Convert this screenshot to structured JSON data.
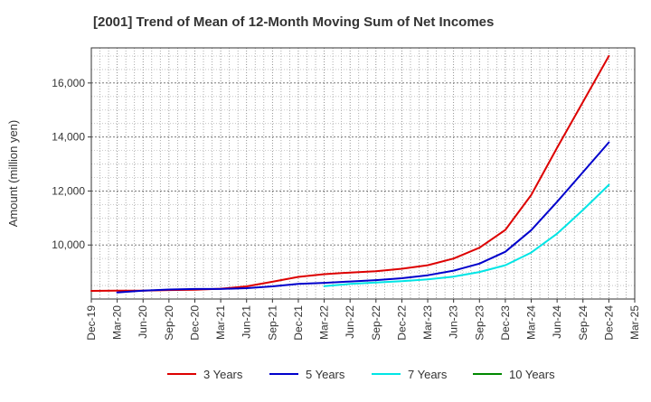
{
  "chart_data": {
    "type": "line",
    "title": "[2001]  Trend of Mean of 12-Month Moving Sum of Net Incomes",
    "ylabel": "Amount (million yen)",
    "xlabel": "",
    "ylim": [
      8000,
      17300
    ],
    "x_ticks": [
      "Dec-19",
      "Mar-20",
      "Jun-20",
      "Sep-20",
      "Dec-20",
      "Mar-21",
      "Jun-21",
      "Sep-21",
      "Dec-21",
      "Mar-22",
      "Jun-22",
      "Sep-22",
      "Dec-22",
      "Mar-23",
      "Jun-23",
      "Sep-23",
      "Dec-23",
      "Mar-24",
      "Jun-24",
      "Sep-24",
      "Dec-24",
      "Mar-25"
    ],
    "y_ticks": [
      10000,
      12000,
      14000,
      16000
    ],
    "y_tick_labels": [
      "10,000",
      "12,000",
      "14,000",
      "16,000"
    ],
    "grid": true,
    "legend_position": "bottom",
    "series": [
      {
        "name": "3 Years",
        "color": "#dd0000",
        "x": [
          "Dec-19",
          "Mar-20",
          "Jun-20",
          "Sep-20",
          "Dec-20",
          "Mar-21",
          "Jun-21",
          "Sep-21",
          "Dec-21",
          "Mar-22",
          "Jun-22",
          "Sep-22",
          "Dec-22",
          "Mar-23",
          "Jun-23",
          "Sep-23",
          "Dec-23",
          "Mar-24",
          "Jun-24",
          "Sep-24",
          "Dec-24"
        ],
        "values": [
          8300,
          8310,
          8310,
          8330,
          8340,
          8380,
          8470,
          8640,
          8820,
          8920,
          8980,
          9030,
          9120,
          9250,
          9500,
          9900,
          10560,
          11850,
          13600,
          15300,
          17000
        ]
      },
      {
        "name": "5 Years",
        "color": "#0000cc",
        "x": [
          "Mar-20",
          "Jun-20",
          "Sep-20",
          "Dec-20",
          "Mar-21",
          "Jun-21",
          "Sep-21",
          "Dec-21",
          "Mar-22",
          "Jun-22",
          "Sep-22",
          "Dec-22",
          "Mar-23",
          "Jun-23",
          "Sep-23",
          "Dec-23",
          "Mar-24",
          "Jun-24",
          "Sep-24",
          "Dec-24"
        ],
        "values": [
          8240,
          8310,
          8350,
          8370,
          8370,
          8400,
          8470,
          8560,
          8600,
          8650,
          8700,
          8770,
          8880,
          9050,
          9310,
          9750,
          10550,
          11600,
          12700,
          13800
        ]
      },
      {
        "name": "7 Years",
        "color": "#00e5e5",
        "x": [
          "Mar-22",
          "Jun-22",
          "Sep-22",
          "Dec-22",
          "Mar-23",
          "Jun-23",
          "Sep-23",
          "Dec-23",
          "Mar-24",
          "Jun-24",
          "Sep-24",
          "Dec-24"
        ],
        "values": [
          8480,
          8560,
          8610,
          8660,
          8730,
          8830,
          9000,
          9250,
          9720,
          10420,
          11300,
          12230
        ]
      },
      {
        "name": "10 Years",
        "color": "#008800",
        "x": [],
        "values": []
      }
    ]
  }
}
